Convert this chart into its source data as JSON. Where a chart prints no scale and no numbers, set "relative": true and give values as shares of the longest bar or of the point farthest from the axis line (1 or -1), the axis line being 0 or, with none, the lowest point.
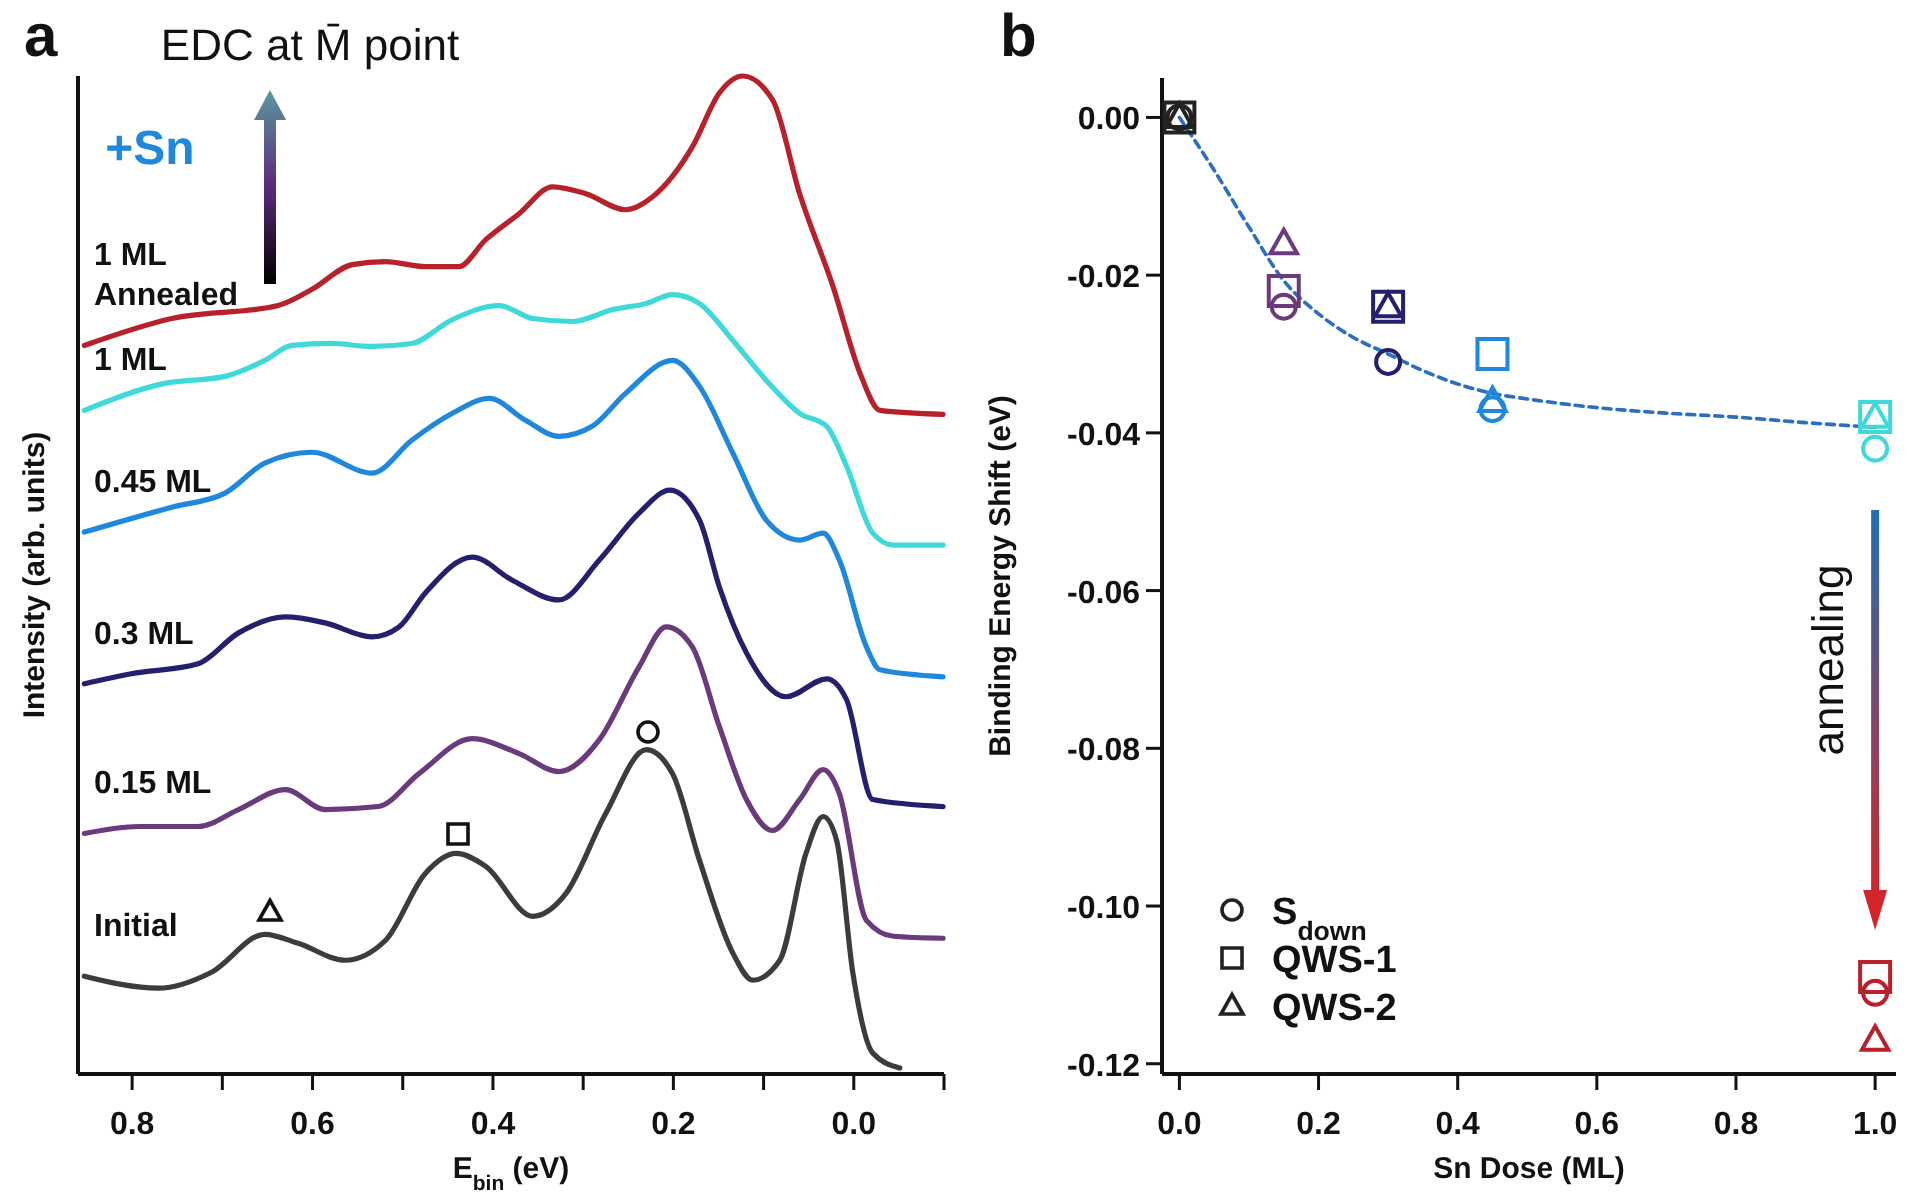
{
  "chart_data": [
    {
      "type": "line",
      "title": "EDC at M̄ point",
      "xlabel": "E$_{bin}$ (eV)",
      "ylabel": "Intensity (arb. units)",
      "relative": true,
      "tick_labels": "x",
      "legend": false,
      "annotations": [
        "a",
        "+Sn"
      ],
      "xlim": [
        0.86,
        -0.1
      ],
      "xticks": [
        0.8,
        {
          "value": 0.7,
          "label": null
        },
        0.6,
        {
          "value": 0.5,
          "label": null
        },
        0.4,
        {
          "value": 0.3,
          "label": null
        },
        0.2,
        {
          "value": 0.1,
          "label": null
        },
        {
          "value": 0,
          "label": "0.0"
        },
        {
          "value": -0.1,
          "label": null
        }
      ],
      "series": [
        {
          "name": "1 ML Annealed",
          "color": "#b8202a",
          "x": [
            0.853,
            0.756,
            0.638,
            0.601,
            0.556,
            0.519,
            0.475,
            0.438,
            0.408,
            0.371,
            0.334,
            0.297,
            0.253,
            0.223,
            0.179,
            0.149,
            0.123,
            0.09,
            0.06,
            0.023,
            -0.007,
            -0.029,
            -0.099
          ],
          "values": [
            0.73,
            0.757,
            0.77,
            0.786,
            0.811,
            0.814,
            0.809,
            0.809,
            0.836,
            0.862,
            0.889,
            0.882,
            0.866,
            0.879,
            0.929,
            0.983,
            1,
            0.976,
            0.882,
            0.789,
            0.702,
            0.665,
            0.661
          ]
        },
        {
          "name": "1 ML",
          "color": "#3fd9d9",
          "x": [
            0.853,
            0.764,
            0.697,
            0.653,
            0.623,
            0.579,
            0.534,
            0.49,
            0.445,
            0.393,
            0.356,
            0.312,
            0.267,
            0.23,
            0.201,
            0.171,
            0.134,
            0.097,
            0.06,
            0.03,
            0.008,
            -0.021,
            -0.044,
            -0.099
          ],
          "values": [
            0.665,
            0.692,
            0.699,
            0.715,
            0.73,
            0.732,
            0.729,
            0.732,
            0.756,
            0.77,
            0.757,
            0.754,
            0.766,
            0.772,
            0.781,
            0.772,
            0.735,
            0.695,
            0.662,
            0.649,
            0.609,
            0.542,
            0.53,
            0.53
          ]
        },
        {
          "name": "0.45 ML",
          "color": "#1f88dd",
          "x": [
            0.853,
            0.756,
            0.697,
            0.653,
            0.601,
            0.534,
            0.49,
            0.445,
            0.404,
            0.364,
            0.327,
            0.29,
            0.253,
            0.201,
            0.171,
            0.134,
            0.097,
            0.06,
            0.034,
            0.016,
            -0.014,
            -0.029,
            -0.099
          ],
          "values": [
            0.543,
            0.568,
            0.582,
            0.612,
            0.623,
            0.602,
            0.635,
            0.662,
            0.677,
            0.655,
            0.639,
            0.649,
            0.682,
            0.715,
            0.689,
            0.622,
            0.555,
            0.535,
            0.542,
            0.515,
            0.428,
            0.405,
            0.398
          ]
        },
        {
          "name": "0.3 ML",
          "color": "#25206e",
          "x": [
            0.853,
            0.801,
            0.727,
            0.682,
            0.63,
            0.586,
            0.534,
            0.504,
            0.475,
            0.423,
            0.379,
            0.327,
            0.282,
            0.238,
            0.204,
            0.171,
            0.149,
            0.119,
            0.075,
            0.03,
            0.008,
            -0.021,
            -0.099
          ],
          "values": [
            0.391,
            0.401,
            0.411,
            0.442,
            0.458,
            0.452,
            0.438,
            0.448,
            0.482,
            0.518,
            0.495,
            0.475,
            0.515,
            0.562,
            0.585,
            0.555,
            0.488,
            0.422,
            0.378,
            0.396,
            0.375,
            0.275,
            0.268
          ]
        },
        {
          "name": "0.15 ML",
          "color": "#6a3a7c",
          "x": [
            0.853,
            0.793,
            0.727,
            0.682,
            0.63,
            0.586,
            0.527,
            0.482,
            0.423,
            0.371,
            0.327,
            0.282,
            0.238,
            0.208,
            0.179,
            0.149,
            0.119,
            0.09,
            0.06,
            0.034,
            0.016,
            -0.014,
            -0.044,
            -0.099
          ],
          "values": [
            0.241,
            0.248,
            0.248,
            0.265,
            0.285,
            0.265,
            0.268,
            0.301,
            0.336,
            0.321,
            0.303,
            0.335,
            0.408,
            0.448,
            0.428,
            0.348,
            0.275,
            0.244,
            0.275,
            0.305,
            0.281,
            0.154,
            0.138,
            0.136
          ]
        },
        {
          "name": "Initial",
          "color": "#3c3c3c",
          "x": [
            0.853,
            0.771,
            0.712,
            0.653,
            0.616,
            0.564,
            0.519,
            0.475,
            0.441,
            0.408,
            0.356,
            0.319,
            0.275,
            0.23,
            0.201,
            0.171,
            0.134,
            0.112,
            0.082,
            0.053,
            0.034,
            0.019,
            0.001,
            -0.021,
            -0.051
          ],
          "values": [
            0.098,
            0.086,
            0.102,
            0.14,
            0.131,
            0.114,
            0.134,
            0.201,
            0.221,
            0.208,
            0.158,
            0.181,
            0.261,
            0.325,
            0.301,
            0.214,
            0.121,
            0.094,
            0.114,
            0.221,
            0.258,
            0.234,
            0.101,
            0.021,
            0.006
          ]
        }
      ]
    },
    {
      "type": "scatter",
      "xlabel": "Sn Dose (ML)",
      "ylabel": "Binding Energy Shift (eV)",
      "legend": "bottom left",
      "annotations": [
        "b",
        "annealing"
      ],
      "xlim": [
        -0.025,
        1.03
      ],
      "xticks": [
        {
          "value": 0,
          "label": "0.0"
        },
        0.2,
        0.4,
        0.6,
        0.8,
        {
          "value": 1,
          "label": "1.0"
        }
      ],
      "ylim": [
        -0.1213,
        0.005
      ],
      "yticks": [
        {
          "value": 0,
          "label": "0.00"
        },
        {
          "value": -0.02,
          "label": "-0.02"
        },
        {
          "value": -0.04,
          "label": "-0.04"
        },
        {
          "value": -0.06,
          "label": "-0.06"
        },
        {
          "value": -0.08,
          "label": "-0.08"
        },
        {
          "value": -0.1,
          "label": "-0.10"
        },
        {
          "value": -0.12,
          "label": "-0.12"
        }
      ],
      "series": [
        {
          "type": "line",
          "color": "#2a6fc0",
          "line_style": "dashed",
          "x": [
            0,
            0.05,
            0.1,
            0.15,
            0.2,
            0.25,
            0.3,
            0.35,
            0.4,
            0.45,
            0.5,
            0.6,
            0.7,
            0.8,
            0.9,
            1
          ],
          "values": [
            0,
            -0.0067,
            -0.0139,
            -0.0207,
            -0.0249,
            -0.0279,
            -0.03,
            -0.0321,
            -0.0338,
            -0.035,
            -0.0357,
            -0.0368,
            -0.0375,
            -0.038,
            -0.0387,
            -0.0393
          ]
        },
        {
          "name": "S$_{down}$",
          "marker": "circle",
          "color": "#222222",
          "x": [
            0,
            0.15,
            0.3,
            0.45,
            1,
            1
          ],
          "values": [
            0,
            -0.024,
            -0.031,
            -0.037,
            -0.042,
            -0.111
          ],
          "colors": [
            "#222222",
            "#6a3a7c",
            "#25206e",
            "#1f88dd",
            "#3fd9d9",
            "#b8202a"
          ]
        },
        {
          "name": "QWS-1",
          "marker": "square",
          "color": "#222222",
          "x": [
            0,
            0.15,
            0.3,
            0.45,
            1,
            1
          ],
          "values": [
            0,
            -0.022,
            -0.024,
            -0.03,
            -0.038,
            -0.109
          ],
          "colors": [
            "#222222",
            "#6a3a7c",
            "#25206e",
            "#1f88dd",
            "#3fd9d9",
            "#b8202a"
          ]
        },
        {
          "name": "QWS-2",
          "marker": "triangle",
          "color": "#222222",
          "x": [
            0,
            0.15,
            0.3,
            0.45,
            1,
            1
          ],
          "values": [
            0,
            -0.016,
            -0.024,
            -0.036,
            -0.038,
            -0.117
          ],
          "colors": [
            "#222222",
            "#6a3a7c",
            "#25206e",
            "#1f88dd",
            "#3fd9d9",
            "#b8202a"
          ]
        }
      ]
    }
  ]
}
